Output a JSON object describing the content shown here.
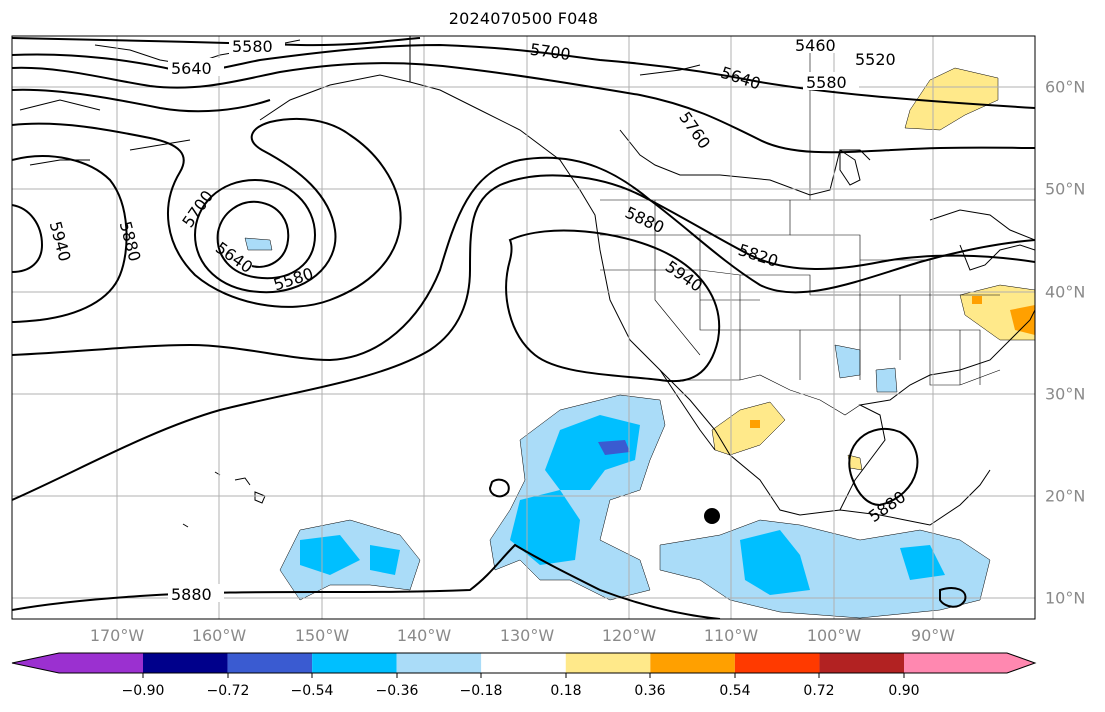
{
  "title": "2024070500 F048",
  "map": {
    "longitude_labels": [
      "170°W",
      "160°W",
      "150°W",
      "140°W",
      "130°W",
      "120°W",
      "110°W",
      "100°W",
      "90°W"
    ],
    "latitude_labels": [
      "60°N",
      "50°N",
      "40°N",
      "30°N",
      "20°N",
      "10°N"
    ],
    "contour_labels": [
      "5580",
      "5640",
      "5700",
      "5460",
      "5520",
      "5640",
      "5580",
      "5760",
      "5940",
      "5880",
      "5700",
      "5640",
      "5580",
      "5880",
      "5820",
      "5940",
      "5880",
      "5880"
    ],
    "colors": {
      "contour": "#000000",
      "gridline": "#b0b0b0",
      "coast": "#000000"
    }
  },
  "colorbar": {
    "tick_labels": [
      "−0.90",
      "−0.72",
      "−0.54",
      "−0.36",
      "−0.18",
      "0.18",
      "0.36",
      "0.54",
      "0.72",
      "0.90"
    ],
    "colors": [
      "#9b30d0",
      "#00008b",
      "#3a5bd1",
      "#00bfff",
      "#aadcf8",
      "#ffffff",
      "#ffe98a",
      "#ffa000",
      "#ff3a00",
      "#b22222",
      "#ff88b0"
    ]
  }
}
